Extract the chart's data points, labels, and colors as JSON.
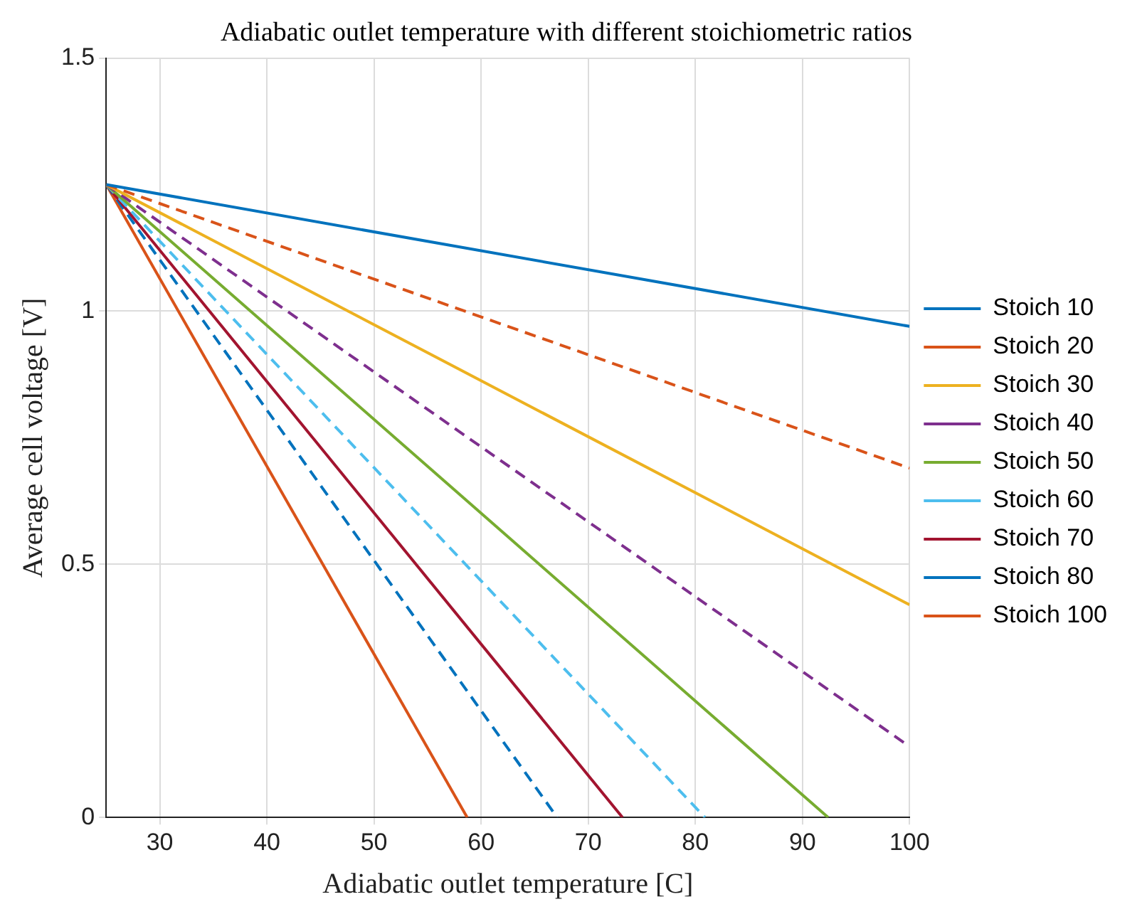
{
  "chart_data": {
    "type": "line",
    "title": "Adiabatic outlet temperature with different stoichiometric ratios",
    "xlabel": "Adiabatic outlet temperature [C]",
    "ylabel": "Average cell voltage [V]",
    "xlim": [
      25,
      100
    ],
    "xticks": [
      30,
      40,
      50,
      60,
      70,
      80,
      90,
      100
    ],
    "ylim": [
      0,
      1.5
    ],
    "yticks": [
      0,
      0.5,
      1,
      1.5
    ],
    "grid": true,
    "legend": "right",
    "marker": "none",
    "series": [
      {
        "name": "Stoich 10",
        "color": "#0072bd",
        "line_style": "solid",
        "x": [
          25,
          100
        ],
        "values": [
          1.25,
          0.97
        ]
      },
      {
        "name": "Stoich 20",
        "color": "#d95319",
        "line_style": "dashed",
        "x": [
          25,
          100
        ],
        "values": [
          1.25,
          0.69
        ]
      },
      {
        "name": "Stoich 30",
        "color": "#edb120",
        "line_style": "solid",
        "x": [
          25,
          100
        ],
        "values": [
          1.25,
          0.42
        ]
      },
      {
        "name": "Stoich 40",
        "color": "#7e2f8e",
        "line_style": "dashed",
        "x": [
          25,
          100
        ],
        "values": [
          1.25,
          0.14
        ]
      },
      {
        "name": "Stoich 50",
        "color": "#77ac30",
        "line_style": "solid",
        "x": [
          25,
          92.4
        ],
        "values": [
          1.25,
          0
        ]
      },
      {
        "name": "Stoich 60",
        "color": "#4dbeee",
        "line_style": "dashed",
        "x": [
          25,
          80.9
        ],
        "values": [
          1.25,
          0
        ]
      },
      {
        "name": "Stoich 70",
        "color": "#a2142f",
        "line_style": "solid",
        "x": [
          25,
          73.2
        ],
        "values": [
          1.25,
          0
        ]
      },
      {
        "name": "Stoich 80",
        "color": "#0072bd",
        "line_style": "dashed",
        "x": [
          25,
          67.1
        ],
        "values": [
          1.25,
          0
        ]
      },
      {
        "name": "Stoich 100",
        "color": "#d95319",
        "line_style": "solid",
        "x": [
          25,
          58.7
        ],
        "values": [
          1.25,
          0
        ]
      }
    ]
  }
}
